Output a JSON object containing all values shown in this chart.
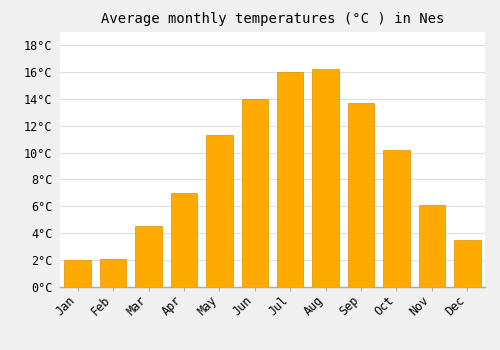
{
  "title": "Average monthly temperatures (°C ) in Nes",
  "months": [
    "Jan",
    "Feb",
    "Mar",
    "Apr",
    "May",
    "Jun",
    "Jul",
    "Aug",
    "Sep",
    "Oct",
    "Nov",
    "Dec"
  ],
  "values": [
    2.0,
    2.1,
    4.5,
    7.0,
    11.3,
    14.0,
    16.0,
    16.2,
    13.7,
    10.2,
    6.1,
    3.5
  ],
  "bar_color": "#FFAA00",
  "bar_edge_color": "#E09000",
  "background_color": "#f0f0f0",
  "plot_bg_color": "#ffffff",
  "grid_color": "#dddddd",
  "ylim": [
    0,
    19
  ],
  "yticks": [
    0,
    2,
    4,
    6,
    8,
    10,
    12,
    14,
    16,
    18
  ],
  "title_fontsize": 10,
  "tick_fontsize": 8.5
}
